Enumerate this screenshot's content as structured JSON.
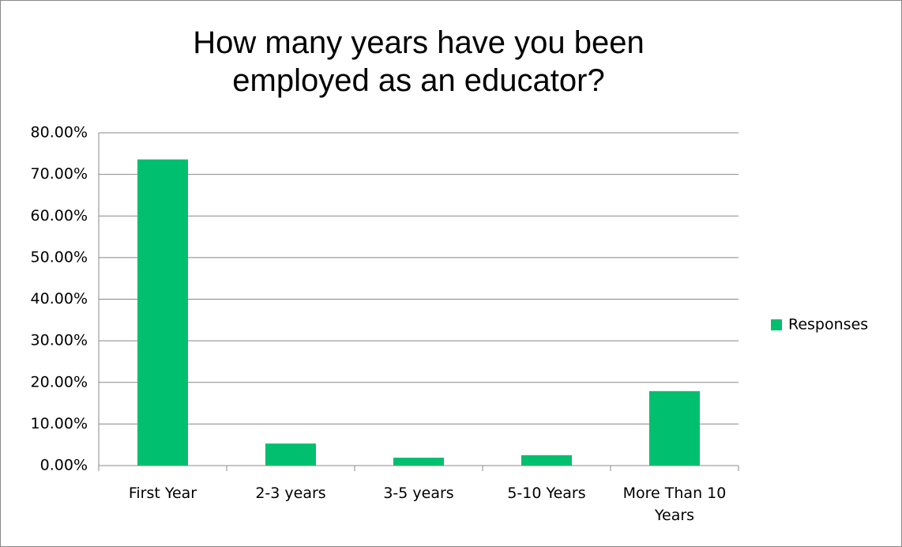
{
  "chart_data": {
    "type": "bar",
    "title": "How many years have you been employed as an educator?",
    "categories": [
      "First Year",
      "2-3 years",
      "3-5 years",
      "5-10 Years",
      "More Than 10 Years"
    ],
    "series": [
      {
        "name": "Responses",
        "color": "#00BF6F",
        "values": [
          73.6,
          5.3,
          1.9,
          2.5,
          17.9
        ]
      }
    ],
    "ylim": [
      0,
      80
    ],
    "yticks": [
      {
        "value": 0,
        "label": "0.00%"
      },
      {
        "value": 10,
        "label": "10.00%"
      },
      {
        "value": 20,
        "label": "20.00%"
      },
      {
        "value": 30,
        "label": "30.00%"
      },
      {
        "value": 40,
        "label": "40.00%"
      },
      {
        "value": 50,
        "label": "50.00%"
      },
      {
        "value": 60,
        "label": "60.00%"
      },
      {
        "value": 70,
        "label": "70.00%"
      },
      {
        "value": 80,
        "label": "80.00%"
      }
    ],
    "grid": true,
    "legend": "right"
  }
}
